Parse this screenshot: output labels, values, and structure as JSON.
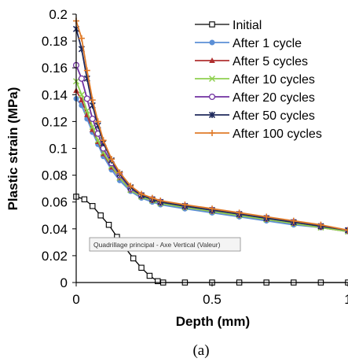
{
  "chart_data": {
    "type": "line",
    "xlabel": "Depth (mm)",
    "ylabel": "Plastic strain (MPa)",
    "xlim": [
      0,
      1
    ],
    "ylim": [
      0,
      0.2
    ],
    "x_ticks": [
      "0",
      "0.5",
      "1"
    ],
    "y_ticks": [
      "0",
      "0.02",
      "0.04",
      "0.06",
      "0.08",
      "0.1",
      "0.12",
      "0.14",
      "0.16",
      "0.18",
      "0.2"
    ],
    "grid": false,
    "legend_position": "top-right",
    "caption": "(a)",
    "tooltip": "Quadrillage principal - Axe Vertical (Valeur)",
    "series": [
      {
        "name": "Initial",
        "color": "#000000",
        "marker": "square-open",
        "x": [
          0,
          0.03,
          0.06,
          0.09,
          0.12,
          0.15,
          0.18,
          0.21,
          0.24,
          0.27,
          0.3,
          0.32,
          0.4,
          0.5,
          0.6,
          0.7,
          0.8,
          0.9,
          1.0
        ],
        "y": [
          0.064,
          0.062,
          0.057,
          0.05,
          0.043,
          0.034,
          0.026,
          0.018,
          0.011,
          0.005,
          0.001,
          0,
          0,
          0,
          0,
          0,
          0,
          0,
          0
        ]
      },
      {
        "name": "After 1 cycle",
        "color": "#5b8fd6",
        "marker": "circle",
        "x": [
          0,
          0.02,
          0.04,
          0.06,
          0.08,
          0.1,
          0.13,
          0.16,
          0.2,
          0.24,
          0.28,
          0.31,
          0.4,
          0.5,
          0.6,
          0.7,
          0.8,
          0.9,
          1.0
        ],
        "y": [
          0.137,
          0.132,
          0.122,
          0.112,
          0.103,
          0.094,
          0.084,
          0.076,
          0.068,
          0.063,
          0.06,
          0.058,
          0.055,
          0.052,
          0.049,
          0.046,
          0.043,
          0.041,
          0.038
        ]
      },
      {
        "name": "After 5 cycles",
        "color": "#b03030",
        "marker": "triangle",
        "x": [
          0,
          0.02,
          0.04,
          0.06,
          0.08,
          0.1,
          0.13,
          0.16,
          0.2,
          0.24,
          0.28,
          0.31,
          0.4,
          0.5,
          0.6,
          0.7,
          0.8,
          0.9,
          1.0
        ],
        "y": [
          0.143,
          0.136,
          0.125,
          0.114,
          0.105,
          0.096,
          0.086,
          0.078,
          0.069,
          0.064,
          0.061,
          0.059,
          0.056,
          0.053,
          0.05,
          0.047,
          0.044,
          0.041,
          0.038
        ]
      },
      {
        "name": "After 10 cycles",
        "color": "#8fd14f",
        "marker": "x",
        "x": [
          0,
          0.02,
          0.04,
          0.06,
          0.08,
          0.1,
          0.13,
          0.16,
          0.2,
          0.24,
          0.28,
          0.31,
          0.4,
          0.5,
          0.6,
          0.7,
          0.8,
          0.9,
          1.0
        ],
        "y": [
          0.15,
          0.14,
          0.128,
          0.116,
          0.106,
          0.097,
          0.087,
          0.078,
          0.069,
          0.064,
          0.061,
          0.059,
          0.056,
          0.053,
          0.05,
          0.047,
          0.044,
          0.041,
          0.038
        ]
      },
      {
        "name": "After 20 cycles",
        "color": "#7030a0",
        "marker": "circle-open",
        "x": [
          0,
          0.02,
          0.04,
          0.06,
          0.08,
          0.1,
          0.13,
          0.16,
          0.2,
          0.24,
          0.28,
          0.31,
          0.4,
          0.5,
          0.6,
          0.7,
          0.8,
          0.9,
          1.0
        ],
        "y": [
          0.162,
          0.152,
          0.137,
          0.122,
          0.111,
          0.1,
          0.089,
          0.08,
          0.07,
          0.065,
          0.062,
          0.06,
          0.057,
          0.054,
          0.051,
          0.048,
          0.045,
          0.042,
          0.039
        ]
      },
      {
        "name": "After 50 cycles",
        "color": "#1f2a5c",
        "marker": "star",
        "x": [
          0,
          0.02,
          0.04,
          0.06,
          0.08,
          0.1,
          0.13,
          0.16,
          0.2,
          0.24,
          0.28,
          0.31,
          0.4,
          0.5,
          0.6,
          0.7,
          0.8,
          0.9,
          1.0
        ],
        "y": [
          0.189,
          0.174,
          0.152,
          0.132,
          0.117,
          0.104,
          0.091,
          0.081,
          0.071,
          0.065,
          0.062,
          0.06,
          0.057,
          0.054,
          0.051,
          0.048,
          0.045,
          0.042,
          0.039
        ]
      },
      {
        "name": "After 100 cycles",
        "color": "#e07b2a",
        "marker": "plus",
        "x": [
          0,
          0.02,
          0.04,
          0.06,
          0.08,
          0.1,
          0.13,
          0.16,
          0.2,
          0.24,
          0.28,
          0.31,
          0.4,
          0.5,
          0.6,
          0.7,
          0.8,
          0.9,
          1.0
        ],
        "y": [
          0.195,
          0.182,
          0.158,
          0.136,
          0.12,
          0.106,
          0.092,
          0.082,
          0.072,
          0.066,
          0.063,
          0.061,
          0.058,
          0.055,
          0.052,
          0.049,
          0.046,
          0.043,
          0.039
        ]
      }
    ]
  }
}
